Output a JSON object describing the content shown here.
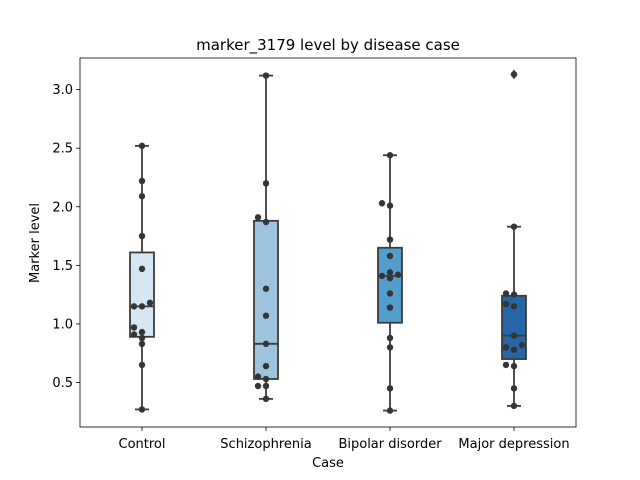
{
  "chart_data": {
    "type": "boxplot",
    "title": "marker_3179 level by disease case",
    "xlabel": "Case",
    "ylabel": "Marker level",
    "ylim": [
      0.12,
      3.27
    ],
    "yticks": [
      0.5,
      1.0,
      1.5,
      2.0,
      2.5,
      3.0
    ],
    "ytick_labels": [
      "0.5",
      "1.0",
      "1.5",
      "2.0",
      "2.5",
      "3.0"
    ],
    "grid": false,
    "categories": [
      "Control",
      "Schizophrenia",
      "Bipolar disorder",
      "Major depression"
    ],
    "box_colors": [
      "#d6e6f4",
      "#9dc4dc",
      "#539ecd",
      "#2566a8"
    ],
    "boxes": [
      {
        "whislo": 0.27,
        "q1": 0.89,
        "med": 1.15,
        "q3": 1.61,
        "whishi": 2.52,
        "fliers": []
      },
      {
        "whislo": 0.36,
        "q1": 0.53,
        "med": 0.83,
        "q3": 1.88,
        "whishi": 3.12,
        "fliers": []
      },
      {
        "whislo": 0.26,
        "q1": 1.01,
        "med": 1.41,
        "q3": 1.65,
        "whishi": 2.44,
        "fliers": []
      },
      {
        "whislo": 0.3,
        "q1": 0.7,
        "med": 0.9,
        "q3": 1.24,
        "whishi": 1.83,
        "fliers": [
          3.13
        ]
      }
    ],
    "points": [
      [
        0.27,
        0.65,
        0.83,
        0.88,
        0.91,
        0.93,
        0.97,
        1.15,
        1.15,
        1.18,
        1.47,
        1.75,
        2.09,
        2.22,
        2.52
      ],
      [
        0.36,
        0.47,
        0.47,
        0.53,
        0.55,
        0.64,
        0.83,
        1.07,
        1.3,
        1.87,
        1.91,
        2.2,
        3.12
      ],
      [
        0.26,
        0.45,
        0.8,
        0.88,
        1.14,
        1.26,
        1.39,
        1.41,
        1.42,
        1.44,
        1.58,
        1.72,
        2.01,
        2.03,
        2.44
      ],
      [
        0.3,
        0.45,
        0.64,
        0.65,
        0.78,
        0.8,
        0.82,
        0.9,
        1.15,
        1.17,
        1.25,
        1.26,
        1.83,
        3.13
      ]
    ]
  }
}
